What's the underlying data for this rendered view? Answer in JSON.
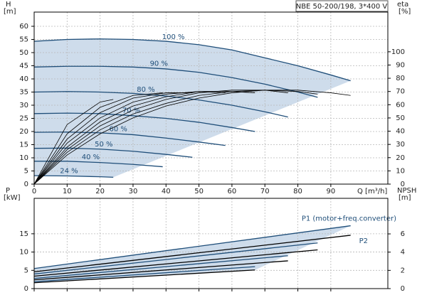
{
  "chart_data": [
    {
      "type": "line",
      "title": "NBE 50-200/198, 3*400 V",
      "x_label": "Q [m³/h]",
      "y_label": "H",
      "y_unit": "[m]",
      "y2_label": "eta",
      "y2_unit": "[%]",
      "xlim": [
        0,
        107.3
      ],
      "xticks": [
        0,
        10,
        20,
        30,
        40,
        50,
        60,
        70,
        80,
        90
      ],
      "ylim": [
        0,
        65.4
      ],
      "yticks": [
        0,
        5,
        10,
        15,
        20,
        25,
        30,
        35,
        40,
        45,
        50,
        55,
        60
      ],
      "y2lim": [
        0,
        130
      ],
      "y2ticks": [
        0,
        10,
        20,
        30,
        40,
        50,
        60,
        70,
        80,
        90,
        100
      ],
      "grid": true,
      "range_fill": "#c5d6e8",
      "series": [
        {
          "name": "100 %",
          "color": "#1f4e79",
          "x": [
            0,
            10,
            20,
            30,
            40,
            50,
            60,
            70,
            80,
            90,
            96
          ],
          "values": [
            54.3,
            55,
            55.2,
            55,
            54.3,
            53,
            51,
            48,
            45,
            41.5,
            39.3
          ]
        },
        {
          "name": "90 %",
          "color": "#1f4e79",
          "x": [
            0,
            10,
            20,
            30,
            40,
            50,
            60,
            70,
            80,
            86
          ],
          "values": [
            44.5,
            44.8,
            44.8,
            44.5,
            43.8,
            42.5,
            40.5,
            38,
            35,
            33
          ]
        },
        {
          "name": "80 %",
          "color": "#1f4e79",
          "x": [
            0,
            10,
            20,
            30,
            40,
            50,
            60,
            70,
            77
          ],
          "values": [
            35,
            35.2,
            35,
            34.5,
            33.5,
            32,
            30,
            27.5,
            25.5
          ]
        },
        {
          "name": "70 %",
          "color": "#1f4e79",
          "x": [
            0,
            10,
            20,
            30,
            40,
            50,
            60,
            67
          ],
          "values": [
            26.8,
            27,
            26.8,
            26,
            25,
            23.5,
            21.5,
            20
          ]
        },
        {
          "name": "60 %",
          "color": "#1f4e79",
          "x": [
            0,
            10,
            20,
            30,
            40,
            50,
            58
          ],
          "values": [
            19.7,
            19.8,
            19.5,
            18.8,
            17.5,
            16,
            14.7
          ]
        },
        {
          "name": "50 %",
          "color": "#1f4e79",
          "x": [
            0,
            10,
            20,
            30,
            40,
            48
          ],
          "values": [
            13.6,
            13.7,
            13.3,
            12.5,
            11.3,
            10.2
          ]
        },
        {
          "name": "40 %",
          "color": "#1f4e79",
          "x": [
            0,
            10,
            20,
            30,
            39
          ],
          "values": [
            8.7,
            8.7,
            8.2,
            7.5,
            6.6
          ]
        },
        {
          "name": "24 %",
          "color": "#1f4e79",
          "x": [
            0,
            10,
            20,
            24
          ],
          "values": [
            3.2,
            3.1,
            2.8,
            2.6
          ]
        },
        {
          "color": "#000000",
          "axis": "y2",
          "x": [
            0,
            10,
            20,
            30,
            40,
            50,
            60,
            70,
            80,
            90,
            96
          ],
          "values": [
            0,
            22,
            38,
            50,
            59,
            65,
            69,
            71,
            71,
            69,
            67
          ]
        },
        {
          "color": "#000000",
          "axis": "y2",
          "x": [
            0,
            10,
            20,
            30,
            40,
            50,
            60,
            70,
            80,
            86
          ],
          "values": [
            0,
            24,
            41,
            53,
            61,
            67,
            70,
            71,
            70,
            68
          ]
        },
        {
          "color": "#000000",
          "axis": "y2",
          "x": [
            0,
            10,
            20,
            30,
            40,
            50,
            60,
            70,
            77
          ],
          "values": [
            0,
            26,
            44,
            56,
            64,
            69,
            71,
            71,
            69
          ]
        },
        {
          "color": "#000000",
          "axis": "y2",
          "x": [
            0,
            10,
            20,
            30,
            40,
            50,
            60,
            67
          ],
          "values": [
            0,
            28,
            47,
            59,
            66,
            70,
            70,
            69
          ]
        },
        {
          "color": "#000000",
          "axis": "y2",
          "x": [
            0,
            10,
            20,
            30,
            40,
            50,
            58
          ],
          "values": [
            0,
            31,
            50,
            62,
            68,
            70,
            69
          ]
        },
        {
          "color": "#000000",
          "axis": "y2",
          "x": [
            0,
            10,
            20,
            30,
            40,
            48
          ],
          "values": [
            0,
            34,
            54,
            65,
            69,
            69
          ]
        },
        {
          "color": "#000000",
          "axis": "y2",
          "x": [
            0,
            10,
            20,
            30,
            39
          ],
          "values": [
            0,
            38,
            58,
            67,
            69
          ]
        },
        {
          "color": "#000000",
          "axis": "y2",
          "x": [
            0,
            10,
            20,
            24
          ],
          "values": [
            0,
            45,
            62,
            64
          ]
        }
      ]
    },
    {
      "type": "line",
      "y_label": "P",
      "y_unit": "[kW]",
      "y2_label": "NPSH",
      "y2_unit": "[m]",
      "xlim": [
        0,
        107.3
      ],
      "ylim": [
        0,
        24.7
      ],
      "yticks": [
        0,
        5,
        10,
        15
      ],
      "y2lim": [
        0,
        9.9
      ],
      "y2ticks": [
        0,
        2,
        4,
        6
      ],
      "grid": true,
      "range_fill": "#c5d6e8",
      "series": [
        {
          "name": "P1 (motor+freq.converter)",
          "color": "#1f4e79",
          "x": [
            0,
            96
          ],
          "values": [
            5.5,
            17.2
          ]
        },
        {
          "color": "#1f4e79",
          "x": [
            0,
            86
          ],
          "values": [
            4,
            12.5
          ]
        },
        {
          "color": "#1f4e79",
          "x": [
            0,
            77
          ],
          "values": [
            2.8,
            9
          ]
        },
        {
          "color": "#1f4e79",
          "x": [
            0,
            67
          ],
          "values": [
            1.9,
            6
          ]
        },
        {
          "name": "P2",
          "color": "#000000",
          "x": [
            0,
            96
          ],
          "values": [
            4.6,
            14.6
          ]
        },
        {
          "color": "#000000",
          "x": [
            0,
            86
          ],
          "values": [
            3.4,
            10.6
          ]
        },
        {
          "color": "#000000",
          "x": [
            0,
            77
          ],
          "values": [
            2.4,
            7.6
          ]
        },
        {
          "color": "#000000",
          "x": [
            0,
            67
          ],
          "values": [
            1.6,
            5.1
          ]
        }
      ]
    }
  ]
}
